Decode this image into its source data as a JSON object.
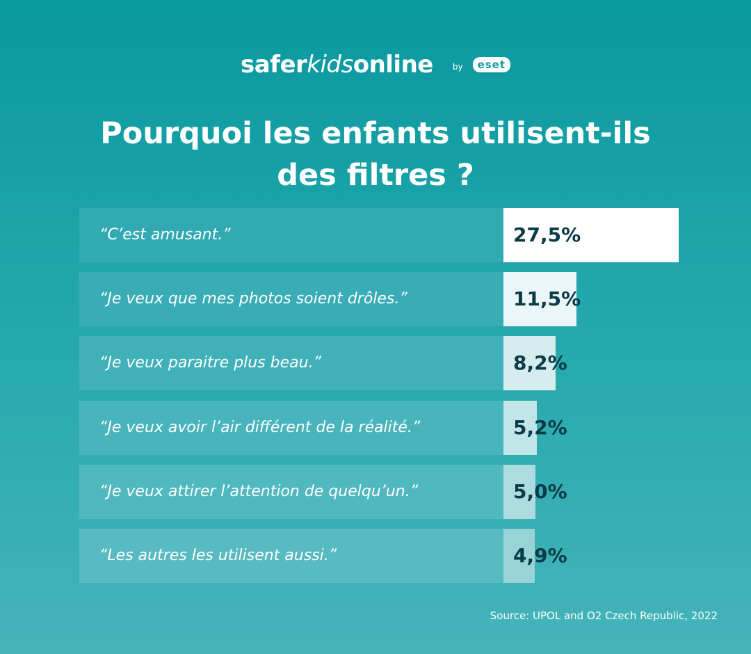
{
  "logo": {
    "part1": "safer",
    "part2": "kids",
    "part3": "online",
    "by": "by",
    "brand": "eset"
  },
  "title_line1": "Pourquoi les enfants utilisent-ils",
  "title_line2": "des filtres ?",
  "colors": {
    "row_background_start": "#31aab3",
    "row_background_end": "#58bbc2",
    "bar_top": "#ffffff",
    "bar_bottom": "#98d3d8",
    "value_text": "#0a3b47"
  },
  "chart_data": {
    "type": "bar",
    "orientation": "horizontal",
    "categories": [
      "“C’est amusant.”",
      "“Je veux que mes photos soient drôles.”",
      "“Je veux paraitre plus beau.”",
      "“Je veux avoir l’air différent de la réalité.”",
      "“Je veux attirer l’attention de quelqu’un.”",
      "“Les autres les utilisent aussi.”"
    ],
    "values": [
      27.5,
      11.5,
      8.2,
      5.2,
      5.0,
      4.9
    ],
    "value_labels": [
      "27,5%",
      "11,5%",
      "8,2%",
      "5,2%",
      "5,0%",
      "4,9%"
    ],
    "unit": "%",
    "title": "Pourquoi les enfants utilisent-ils des filtres ?",
    "xlabel": "",
    "ylabel": "",
    "xlim": [
      0,
      27.5
    ],
    "grid": false,
    "legend": "none"
  },
  "source": "Source: UPOL and O2 Czech Republic, 2022"
}
